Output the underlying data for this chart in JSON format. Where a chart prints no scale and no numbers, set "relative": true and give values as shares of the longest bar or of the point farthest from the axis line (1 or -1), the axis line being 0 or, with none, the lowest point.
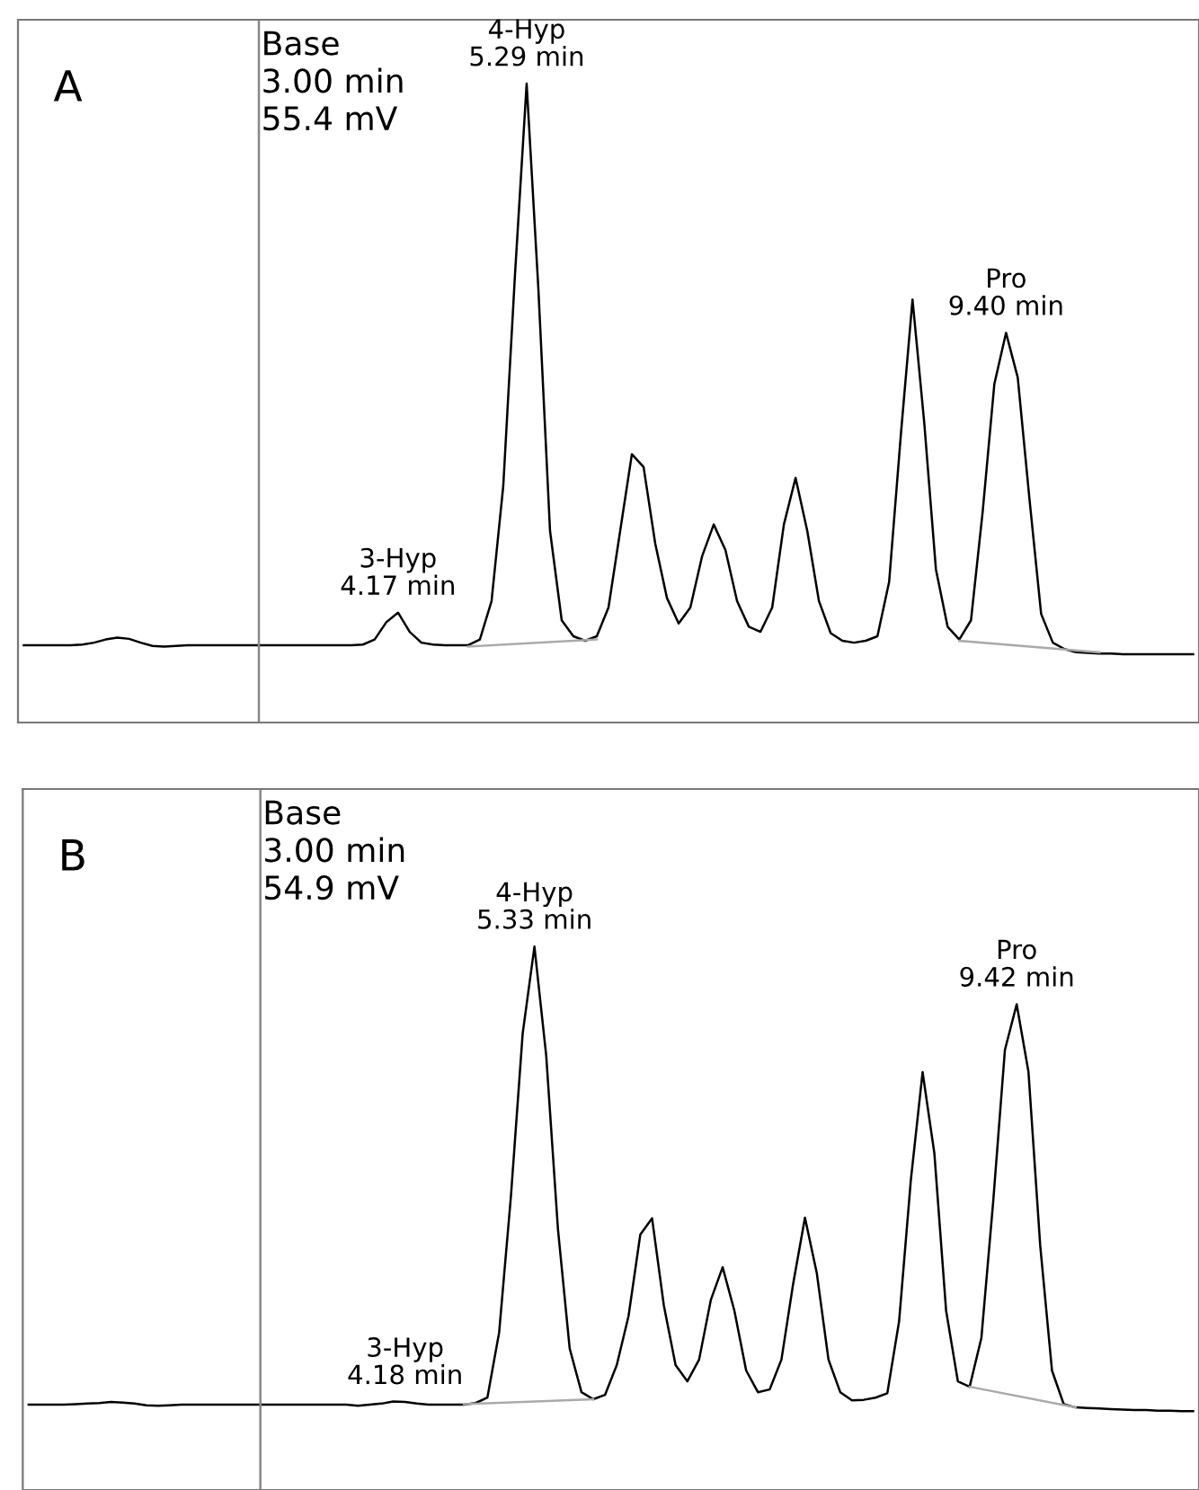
{
  "chart_data": [
    {
      "type": "line",
      "title": "A",
      "relative": true,
      "categories": [
        null,
        null,
        null,
        null,
        null,
        null,
        null,
        null,
        null,
        null,
        null,
        null,
        null,
        null,
        null,
        null,
        null,
        null,
        null,
        null,
        null,
        null,
        null,
        null,
        null,
        null,
        null,
        null,
        null,
        null,
        null,
        null,
        null,
        null,
        null,
        null,
        null,
        null,
        null,
        null,
        null,
        null,
        null,
        null,
        null,
        null,
        null,
        null,
        null,
        null,
        null,
        null,
        null,
        null,
        null,
        null,
        null,
        null,
        null,
        null,
        null,
        null,
        null,
        null,
        null,
        null,
        null,
        null,
        null,
        null,
        null,
        null,
        null,
        null,
        null,
        null,
        null,
        null,
        null,
        null,
        null,
        null,
        null,
        null,
        null,
        null,
        null,
        null,
        null,
        null,
        null,
        null,
        null,
        null,
        null,
        null,
        null,
        null,
        null,
        null,
        null
      ],
      "ref_lines": [
        {
          "axis": "x",
          "label": "Base\n3.00 min\n55.4 mV",
          "color": "#888888"
        }
      ],
      "annotations": [
        "3-Hyp\n4.17 min",
        "4-Hyp\n5.29 min",
        "Pro\n9.40 min"
      ],
      "series": [
        {
          "color": "#000000",
          "values": [
            0.121,
            0.121,
            0.121,
            0.121,
            0.121,
            0.122,
            0.125,
            0.13,
            0.133,
            0.131,
            0.125,
            0.12,
            0.119,
            0.12,
            0.121,
            0.121,
            0.121,
            0.121,
            0.121,
            0.121,
            0.121,
            0.121,
            0.121,
            0.121,
            0.121,
            0.121,
            0.121,
            0.121,
            0.121,
            0.122,
            0.13,
            0.157,
            0.172,
            0.142,
            0.125,
            0.122,
            0.121,
            0.121,
            0.121,
            0.13,
            0.19,
            0.37,
            0.7,
            1.0,
            0.68,
            0.3,
            0.16,
            0.135,
            0.128,
            0.135,
            0.18,
            0.3,
            0.42,
            0.4,
            0.28,
            0.195,
            0.155,
            0.18,
            0.26,
            0.31,
            0.27,
            0.19,
            0.15,
            0.142,
            0.18,
            0.31,
            0.383,
            0.3,
            0.19,
            0.14,
            0.128,
            0.125,
            0.128,
            0.135,
            0.22,
            0.45,
            0.662,
            0.47,
            0.24,
            0.15,
            0.13,
            0.16,
            0.33,
            0.53,
            0.61,
            0.54,
            0.35,
            0.17,
            0.125,
            0.115,
            0.11,
            0.109,
            0.108,
            0.108,
            0.107,
            0.107,
            0.107,
            0.107,
            0.107,
            0.107,
            0.107
          ]
        },
        {
          "color": "#aaaaaa",
          "values": [
            null,
            null,
            null,
            null,
            null,
            null,
            null,
            null,
            null,
            null,
            null,
            null,
            null,
            null,
            null,
            null,
            null,
            null,
            null,
            null,
            null,
            null,
            null,
            null,
            null,
            null,
            null,
            null,
            null,
            null,
            null,
            null,
            null,
            null,
            null,
            null,
            null,
            null,
            0.119,
            null,
            null,
            null,
            null,
            null,
            null,
            null,
            null,
            null,
            null,
            0.13,
            null,
            null,
            null,
            null,
            null,
            null,
            null,
            null,
            null,
            null,
            null,
            null,
            null,
            null,
            null,
            null,
            null,
            null,
            null,
            null,
            null,
            null,
            null,
            null,
            null,
            null,
            null,
            null,
            null,
            null,
            null,
            null,
            null,
            null,
            null,
            null,
            null,
            null,
            null,
            null,
            null,
            null,
            null,
            null,
            null,
            null,
            null,
            null,
            null,
            null,
            null
          ]
        },
        {
          "color": "#aaaaaa",
          "values": [
            null,
            null,
            null,
            null,
            null,
            null,
            null,
            null,
            null,
            null,
            null,
            null,
            null,
            null,
            null,
            null,
            null,
            null,
            null,
            null,
            null,
            null,
            null,
            null,
            null,
            null,
            null,
            null,
            null,
            null,
            null,
            null,
            null,
            null,
            null,
            null,
            null,
            null,
            null,
            null,
            null,
            null,
            null,
            null,
            null,
            null,
            null,
            null,
            null,
            null,
            null,
            null,
            null,
            null,
            null,
            null,
            null,
            null,
            null,
            null,
            null,
            null,
            null,
            null,
            null,
            null,
            null,
            null,
            null,
            null,
            null,
            null,
            null,
            null,
            null,
            null,
            null,
            null,
            null,
            null,
            0.128,
            null,
            null,
            null,
            null,
            null,
            null,
            null,
            null,
            null,
            null,
            null,
            0.11,
            null,
            null,
            null,
            null,
            null,
            null,
            null,
            null
          ]
        }
      ]
    },
    {
      "type": "line",
      "title": "B",
      "relative": true,
      "categories": [
        null,
        null,
        null,
        null,
        null,
        null,
        null,
        null,
        null,
        null,
        null,
        null,
        null,
        null,
        null,
        null,
        null,
        null,
        null,
        null,
        null,
        null,
        null,
        null,
        null,
        null,
        null,
        null,
        null,
        null,
        null,
        null,
        null,
        null,
        null,
        null,
        null,
        null,
        null,
        null,
        null,
        null,
        null,
        null,
        null,
        null,
        null,
        null,
        null,
        null,
        null,
        null,
        null,
        null,
        null,
        null,
        null,
        null,
        null,
        null,
        null,
        null,
        null,
        null,
        null,
        null,
        null,
        null,
        null,
        null,
        null,
        null,
        null,
        null,
        null,
        null,
        null,
        null,
        null,
        null,
        null,
        null,
        null,
        null,
        null,
        null,
        null,
        null,
        null,
        null,
        null,
        null,
        null,
        null,
        null,
        null,
        null,
        null,
        null,
        null
      ],
      "ref_lines": [
        {
          "axis": "x",
          "label": "Base\n3.00 min\n54.9 mV",
          "color": "#888888"
        }
      ],
      "annotations": [
        "3-Hyp\n4.18 min",
        "4-Hyp\n5.33 min",
        "Pro\n9.42 min"
      ],
      "series": [
        {
          "color": "#000000",
          "values": [
            0.157,
            0.157,
            0.157,
            0.157,
            0.158,
            0.159,
            0.16,
            0.162,
            0.161,
            0.159,
            0.156,
            0.155,
            0.156,
            0.157,
            0.157,
            0.157,
            0.157,
            0.157,
            0.157,
            0.157,
            0.157,
            0.157,
            0.157,
            0.157,
            0.157,
            0.157,
            0.157,
            0.157,
            0.155,
            0.157,
            0.159,
            0.163,
            0.162,
            0.159,
            0.157,
            0.157,
            0.157,
            0.157,
            0.16,
            0.17,
            0.29,
            0.54,
            0.84,
            1.0,
            0.8,
            0.48,
            0.26,
            0.18,
            0.167,
            0.175,
            0.23,
            0.32,
            0.47,
            0.5,
            0.34,
            0.23,
            0.2,
            0.24,
            0.35,
            0.41,
            0.33,
            0.22,
            0.18,
            0.185,
            0.24,
            0.38,
            0.501,
            0.4,
            0.24,
            0.18,
            0.165,
            0.166,
            0.17,
            0.178,
            0.31,
            0.57,
            0.769,
            0.62,
            0.33,
            0.2,
            0.19,
            0.28,
            0.53,
            0.81,
            0.894,
            0.77,
            0.45,
            0.22,
            0.158,
            0.152,
            0.151,
            0.15,
            0.149,
            0.148,
            0.147,
            0.147,
            0.146,
            0.146,
            0.145,
            0.145
          ]
        },
        {
          "color": "#aaaaaa",
          "values": [
            null,
            null,
            null,
            null,
            null,
            null,
            null,
            null,
            null,
            null,
            null,
            null,
            null,
            null,
            null,
            null,
            null,
            null,
            null,
            null,
            null,
            null,
            null,
            null,
            null,
            null,
            null,
            null,
            null,
            null,
            null,
            null,
            null,
            null,
            null,
            null,
            null,
            0.158,
            null,
            null,
            null,
            null,
            null,
            null,
            null,
            null,
            null,
            null,
            0.167,
            null,
            null,
            null,
            null,
            null,
            null,
            null,
            null,
            null,
            null,
            null,
            null,
            null,
            null,
            null,
            null,
            null,
            null,
            null,
            null,
            null,
            null,
            null,
            null,
            null,
            null,
            null,
            null,
            null,
            null,
            null,
            null,
            null,
            null,
            null,
            null,
            null,
            null,
            null,
            null,
            null,
            null,
            null,
            null,
            null,
            null,
            null,
            null,
            null,
            null,
            null
          ]
        },
        {
          "color": "#aaaaaa",
          "values": [
            null,
            null,
            null,
            null,
            null,
            null,
            null,
            null,
            null,
            null,
            null,
            null,
            null,
            null,
            null,
            null,
            null,
            null,
            null,
            null,
            null,
            null,
            null,
            null,
            null,
            null,
            null,
            null,
            null,
            null,
            null,
            null,
            null,
            null,
            null,
            null,
            null,
            null,
            null,
            null,
            null,
            null,
            null,
            null,
            null,
            null,
            null,
            null,
            null,
            null,
            null,
            null,
            null,
            null,
            null,
            null,
            null,
            null,
            null,
            null,
            null,
            null,
            null,
            null,
            null,
            null,
            null,
            null,
            null,
            null,
            null,
            null,
            null,
            null,
            null,
            null,
            null,
            null,
            null,
            null,
            0.19,
            null,
            null,
            null,
            null,
            null,
            null,
            null,
            null,
            0.152,
            null,
            null,
            null,
            null,
            null,
            null,
            null,
            null,
            null,
            null
          ]
        }
      ]
    }
  ]
}
